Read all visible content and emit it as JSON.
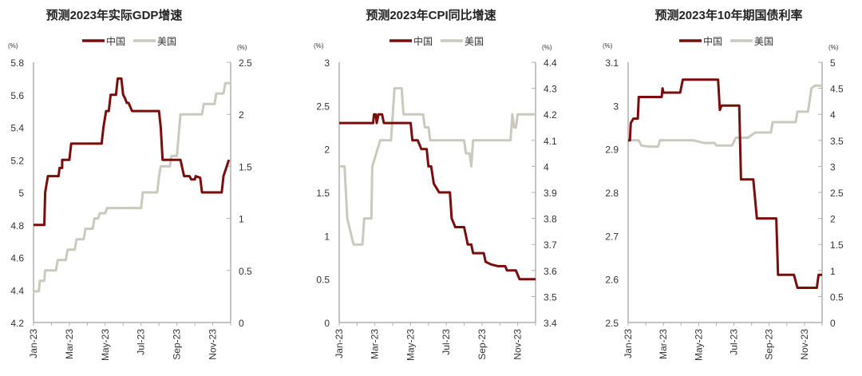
{
  "colors": {
    "china": "#7a0c0c",
    "us": "#c9c9bd",
    "axis": "#b0b0b0"
  },
  "chart_data": [
    {
      "type": "line",
      "title": "预测2023年实际GDP增速",
      "left_unit": "(%)",
      "right_unit": "(%)",
      "x_ticks": [
        "Jan-23",
        "Mar-23",
        "May-23",
        "Jul-23",
        "Sep-23",
        "Nov-23"
      ],
      "x_range_months": [
        0,
        11
      ],
      "left_axis": {
        "range": [
          4.2,
          5.8
        ],
        "ticks": [
          "4.2",
          "4.4",
          "4.6",
          "4.8",
          "5",
          "5.2",
          "5.4",
          "5.6",
          "5.8"
        ]
      },
      "right_axis": {
        "range": [
          0,
          2.5
        ],
        "ticks": [
          "0",
          "0.5",
          "1",
          "1.5",
          "2",
          "2.5"
        ]
      },
      "legend": [
        "中国",
        "美国"
      ],
      "series": [
        {
          "name": "中国",
          "axis": "left",
          "points": [
            [
              0,
              4.8
            ],
            [
              0.6,
              4.8
            ],
            [
              0.65,
              5.0
            ],
            [
              0.8,
              5.1
            ],
            [
              1.4,
              5.1
            ],
            [
              1.45,
              5.15
            ],
            [
              1.6,
              5.15
            ],
            [
              1.6,
              5.2
            ],
            [
              2.0,
              5.2
            ],
            [
              2.1,
              5.3
            ],
            [
              3.8,
              5.3
            ],
            [
              3.9,
              5.4
            ],
            [
              4.05,
              5.5
            ],
            [
              4.2,
              5.5
            ],
            [
              4.3,
              5.6
            ],
            [
              4.6,
              5.6
            ],
            [
              4.7,
              5.7
            ],
            [
              4.9,
              5.7
            ],
            [
              5.0,
              5.6
            ],
            [
              5.1,
              5.58
            ],
            [
              5.2,
              5.55
            ],
            [
              5.3,
              5.55
            ],
            [
              5.5,
              5.5
            ],
            [
              7.0,
              5.5
            ],
            [
              7.1,
              5.4
            ],
            [
              7.2,
              5.2
            ],
            [
              8.2,
              5.2
            ],
            [
              8.4,
              5.1
            ],
            [
              8.7,
              5.1
            ],
            [
              8.8,
              5.08
            ],
            [
              9.0,
              5.08
            ],
            [
              9.05,
              5.1
            ],
            [
              9.3,
              5.09
            ],
            [
              9.4,
              5.0
            ],
            [
              10.5,
              5.0
            ],
            [
              10.6,
              5.1
            ],
            [
              10.9,
              5.2
            ]
          ]
        },
        {
          "name": "美国",
          "axis": "right",
          "points": [
            [
              0,
              0.3
            ],
            [
              0.3,
              0.3
            ],
            [
              0.35,
              0.4
            ],
            [
              0.6,
              0.4
            ],
            [
              0.65,
              0.5
            ],
            [
              1.25,
              0.5
            ],
            [
              1.35,
              0.6
            ],
            [
              1.8,
              0.6
            ],
            [
              1.9,
              0.7
            ],
            [
              2.3,
              0.7
            ],
            [
              2.4,
              0.8
            ],
            [
              2.8,
              0.8
            ],
            [
              2.9,
              0.9
            ],
            [
              3.3,
              0.9
            ],
            [
              3.4,
              1.0
            ],
            [
              3.6,
              1.0
            ],
            [
              3.7,
              1.05
            ],
            [
              4.0,
              1.05
            ],
            [
              4.1,
              1.1
            ],
            [
              6.0,
              1.1
            ],
            [
              6.1,
              1.25
            ],
            [
              6.9,
              1.25
            ],
            [
              7.0,
              1.4
            ],
            [
              7.1,
              1.5
            ],
            [
              7.6,
              1.5
            ],
            [
              7.7,
              1.6
            ],
            [
              8.0,
              1.6
            ],
            [
              8.2,
              2.0
            ],
            [
              9.4,
              2.0
            ],
            [
              9.5,
              2.1
            ],
            [
              10.1,
              2.1
            ],
            [
              10.2,
              2.2
            ],
            [
              10.6,
              2.2
            ],
            [
              10.7,
              2.3
            ],
            [
              11,
              2.3
            ]
          ]
        }
      ]
    },
    {
      "type": "line",
      "title": "预测2023年CPI同比增速",
      "left_unit": "(%)",
      "right_unit": "(%)",
      "x_ticks": [
        "Jan-23",
        "Mar-23",
        "May-23",
        "Jul-23",
        "Sep-23",
        "Nov-23"
      ],
      "x_range_months": [
        0,
        11
      ],
      "left_axis": {
        "range": [
          0,
          3
        ],
        "ticks": [
          "0",
          "0.5",
          "1",
          "1.5",
          "2",
          "2.5",
          "3"
        ]
      },
      "right_axis": {
        "range": [
          3.4,
          4.4
        ],
        "ticks": [
          "3.4",
          "3.5",
          "3.6",
          "3.7",
          "3.8",
          "3.9",
          "4",
          "4.1",
          "4.2",
          "4.3",
          "4.4"
        ]
      },
      "legend": [
        "中国",
        "美国"
      ],
      "series": [
        {
          "name": "中国",
          "axis": "left",
          "points": [
            [
              0,
              2.3
            ],
            [
              1.9,
              2.3
            ],
            [
              1.95,
              2.4
            ],
            [
              2.05,
              2.4
            ],
            [
              2.1,
              2.3
            ],
            [
              2.2,
              2.4
            ],
            [
              2.4,
              2.4
            ],
            [
              2.5,
              2.3
            ],
            [
              4.0,
              2.3
            ],
            [
              4.05,
              2.2
            ],
            [
              4.1,
              2.1
            ],
            [
              4.4,
              2.1
            ],
            [
              4.5,
              2.05
            ],
            [
              4.6,
              2.0
            ],
            [
              4.9,
              2.0
            ],
            [
              5.0,
              1.8
            ],
            [
              5.15,
              1.8
            ],
            [
              5.3,
              1.6
            ],
            [
              5.45,
              1.55
            ],
            [
              5.6,
              1.5
            ],
            [
              6.2,
              1.5
            ],
            [
              6.3,
              1.2
            ],
            [
              6.5,
              1.1
            ],
            [
              7.0,
              1.1
            ],
            [
              7.1,
              1.0
            ],
            [
              7.2,
              0.9
            ],
            [
              7.4,
              0.9
            ],
            [
              7.5,
              0.8
            ],
            [
              8.1,
              0.8
            ],
            [
              8.2,
              0.7
            ],
            [
              8.5,
              0.67
            ],
            [
              8.9,
              0.65
            ],
            [
              9.3,
              0.65
            ],
            [
              9.4,
              0.6
            ],
            [
              9.9,
              0.6
            ],
            [
              10.0,
              0.55
            ],
            [
              10.1,
              0.5
            ],
            [
              11,
              0.5
            ]
          ]
        },
        {
          "name": "美国",
          "axis": "right",
          "points": [
            [
              0,
              4.0
            ],
            [
              0.3,
              4.0
            ],
            [
              0.45,
              3.8
            ],
            [
              0.8,
              3.7
            ],
            [
              1.3,
              3.7
            ],
            [
              1.4,
              3.8
            ],
            [
              1.8,
              3.8
            ],
            [
              1.85,
              4.0
            ],
            [
              2.3,
              4.1
            ],
            [
              2.9,
              4.1
            ],
            [
              3.0,
              4.2
            ],
            [
              3.1,
              4.3
            ],
            [
              3.5,
              4.3
            ],
            [
              3.6,
              4.2
            ],
            [
              4.7,
              4.2
            ],
            [
              4.8,
              4.15
            ],
            [
              5.0,
              4.15
            ],
            [
              5.1,
              4.1
            ],
            [
              7.0,
              4.1
            ],
            [
              7.1,
              4.05
            ],
            [
              7.3,
              4.05
            ],
            [
              7.4,
              4.0
            ],
            [
              7.5,
              4.1
            ],
            [
              9.6,
              4.1
            ],
            [
              9.7,
              4.2
            ],
            [
              9.8,
              4.15
            ],
            [
              9.9,
              4.15
            ],
            [
              10.0,
              4.2
            ],
            [
              11,
              4.2
            ]
          ]
        }
      ]
    },
    {
      "type": "line",
      "title": "预测2023年10年期国债利率",
      "left_unit": "(%)",
      "right_unit": "(%)",
      "x_ticks": [
        "Jan-23",
        "Mar-23",
        "May-23",
        "Jul-23",
        "Sep-23",
        "Nov-23"
      ],
      "x_range_months": [
        0,
        11
      ],
      "left_axis": {
        "range": [
          2.5,
          3.1
        ],
        "ticks": [
          "2.5",
          "2.6",
          "2.7",
          "2.8",
          "2.9",
          "3",
          "3.1"
        ]
      },
      "right_axis": {
        "range": [
          0,
          5
        ],
        "ticks": [
          "0",
          "0.5",
          "1",
          "1.5",
          "2",
          "2.5",
          "3",
          "3.5",
          "4",
          "4.5",
          "5"
        ]
      },
      "legend": [
        "中国",
        "美国"
      ],
      "series": [
        {
          "name": "中国",
          "axis": "left",
          "points": [
            [
              0,
              2.92
            ],
            [
              0.1,
              2.92
            ],
            [
              0.15,
              2.96
            ],
            [
              0.3,
              2.97
            ],
            [
              0.55,
              2.97
            ],
            [
              0.6,
              3.02
            ],
            [
              1.9,
              3.02
            ],
            [
              1.95,
              3.04
            ],
            [
              2.0,
              3.03
            ],
            [
              2.95,
              3.03
            ],
            [
              3.1,
              3.06
            ],
            [
              5.1,
              3.06
            ],
            [
              5.2,
              2.99
            ],
            [
              5.3,
              3.0
            ],
            [
              6.3,
              3.0
            ],
            [
              6.4,
              2.83
            ],
            [
              7.1,
              2.83
            ],
            [
              7.3,
              2.74
            ],
            [
              8.4,
              2.74
            ],
            [
              8.5,
              2.61
            ],
            [
              9.4,
              2.61
            ],
            [
              9.6,
              2.58
            ],
            [
              10.7,
              2.58
            ],
            [
              10.8,
              2.61
            ],
            [
              11,
              2.61
            ]
          ]
        },
        {
          "name": "美国",
          "axis": "right",
          "points": [
            [
              0,
              3.5
            ],
            [
              0.6,
              3.5
            ],
            [
              0.75,
              3.4
            ],
            [
              1.2,
              3.38
            ],
            [
              1.7,
              3.38
            ],
            [
              1.8,
              3.5
            ],
            [
              3.7,
              3.5
            ],
            [
              4.3,
              3.45
            ],
            [
              4.9,
              3.45
            ],
            [
              5.0,
              3.4
            ],
            [
              5.9,
              3.4
            ],
            [
              6.1,
              3.55
            ],
            [
              6.8,
              3.55
            ],
            [
              7.0,
              3.6
            ],
            [
              7.2,
              3.65
            ],
            [
              8.1,
              3.65
            ],
            [
              8.2,
              3.85
            ],
            [
              9.5,
              3.85
            ],
            [
              9.6,
              4.05
            ],
            [
              10.2,
              4.05
            ],
            [
              10.4,
              4.5
            ],
            [
              10.6,
              4.55
            ],
            [
              11,
              4.55
            ]
          ]
        }
      ]
    }
  ]
}
